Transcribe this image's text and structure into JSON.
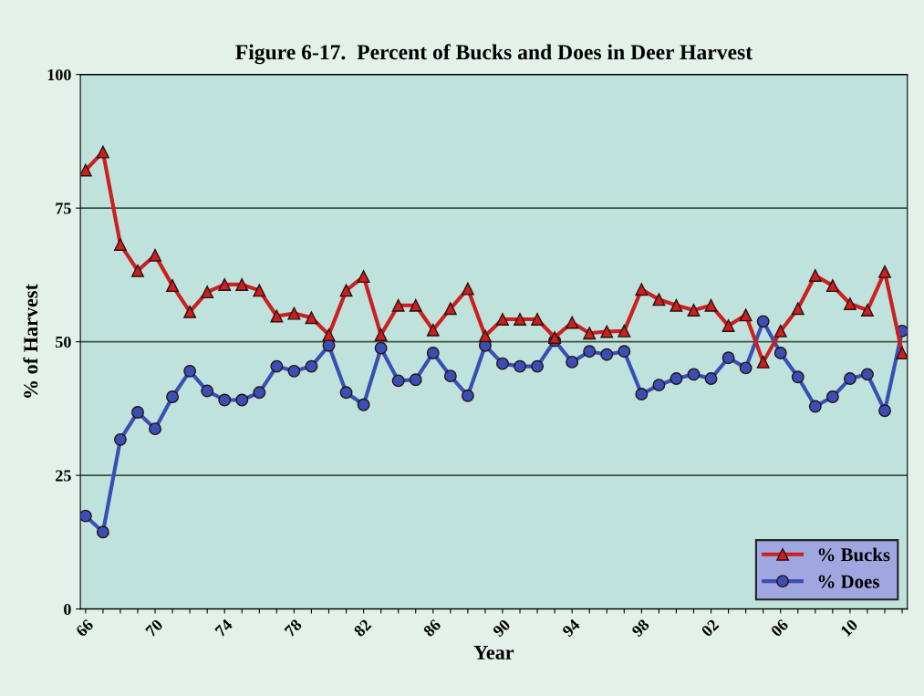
{
  "chart_data": {
    "type": "line",
    "title": "Figure 6-17.  Percent of Bucks and Does in Deer Harvest",
    "xlabel": "Year",
    "ylabel": "% of Harvest",
    "categories": [
      "66",
      null,
      null,
      null,
      "70",
      null,
      null,
      null,
      "74",
      null,
      null,
      null,
      "78",
      null,
      null,
      null,
      "82",
      null,
      null,
      null,
      "86",
      null,
      null,
      null,
      "90",
      null,
      null,
      null,
      "94",
      null,
      null,
      null,
      "98",
      null,
      null,
      null,
      "02",
      null,
      null,
      null,
      "06",
      null,
      null,
      null,
      "10",
      null,
      null,
      null
    ],
    "series": [
      {
        "name": "% Bucks",
        "color": "#cc1f1f",
        "marker": "triangle",
        "values": [
          82.1,
          85.5,
          68.2,
          63.3,
          66.2,
          60.5,
          55.6,
          59.3,
          60.7,
          60.7,
          59.6,
          54.8,
          55.3,
          54.5,
          51.3,
          59.6,
          62.2,
          51.3,
          56.8,
          56.8,
          52.2,
          56.2,
          59.9,
          51.1,
          54.2,
          54.2,
          54.2,
          50.8,
          53.6,
          51.6,
          51.9,
          52.0,
          59.8,
          57.9,
          56.8,
          55.9,
          56.8,
          53.0,
          55.0,
          46.2,
          52.0,
          56.2,
          62.4,
          60.5,
          57.1,
          55.9,
          63.1,
          47.9
        ]
      },
      {
        "name": "% Does",
        "color": "#3a4fb5",
        "marker": "circle",
        "values": [
          17.4,
          14.4,
          31.7,
          36.8,
          33.7,
          39.7,
          44.5,
          40.8,
          39.1,
          39.1,
          40.5,
          45.4,
          44.5,
          45.4,
          49.3,
          40.5,
          38.2,
          48.8,
          42.7,
          42.9,
          47.9,
          43.6,
          39.9,
          49.3,
          45.9,
          45.4,
          45.4,
          50.2,
          46.2,
          48.2,
          47.6,
          48.2,
          40.2,
          41.9,
          43.1,
          43.9,
          43.1,
          47.0,
          45.1,
          53.8,
          47.9,
          43.4,
          37.9,
          39.7,
          43.1,
          43.9,
          37.1,
          52.0
        ]
      }
    ],
    "ylim": [
      0,
      100
    ],
    "yticks": [
      0,
      25,
      50,
      75,
      100
    ],
    "grid": "y",
    "legend": "bottom right",
    "line_style": "solid"
  }
}
